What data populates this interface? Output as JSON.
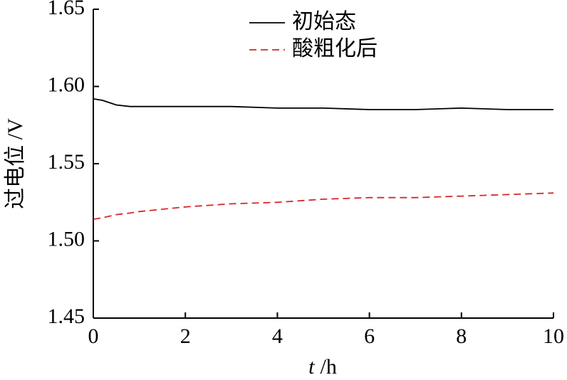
{
  "chart_data": {
    "type": "line",
    "x_label": {
      "variable": "t",
      "unit": "/h"
    },
    "y_label": "过电位 /V",
    "x": [
      0,
      0.2,
      0.5,
      0.8,
      1,
      2,
      3,
      4,
      5,
      6,
      7,
      8,
      9,
      10
    ],
    "series": [
      {
        "name": "初始态",
        "color": "#000000",
        "dash": false,
        "values": [
          1.592,
          1.591,
          1.588,
          1.587,
          1.587,
          1.587,
          1.587,
          1.586,
          1.586,
          1.585,
          1.585,
          1.586,
          1.585,
          1.585
        ]
      },
      {
        "name": "酸粗化后",
        "color": "#d62728",
        "dash": true,
        "values": [
          1.514,
          1.515,
          1.517,
          1.518,
          1.519,
          1.522,
          1.524,
          1.525,
          1.527,
          1.528,
          1.528,
          1.529,
          1.53,
          1.531
        ]
      }
    ],
    "xlim": [
      0,
      10
    ],
    "xticks": [
      0,
      2,
      4,
      6,
      8,
      10
    ],
    "ylim": [
      1.45,
      1.65
    ],
    "yticks": [
      1.45,
      {
        "value": 1.5,
        "label": "1.50"
      },
      1.55,
      {
        "value": 1.6,
        "label": "1.60"
      },
      1.65
    ],
    "legend": "top"
  }
}
